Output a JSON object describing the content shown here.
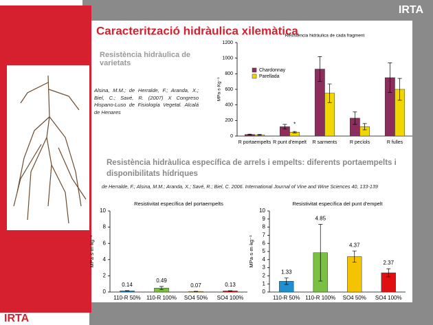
{
  "slide": {
    "title": "Caracterització hidràulica xilemàtica",
    "logos": [
      "IRTA",
      "IRTA"
    ],
    "section1": {
      "heading": "Resistència hidràulica de varietats",
      "citation": "Alsina, M.M.; de Herralde, F.; Aranda, X.; Biel, C.; Savé, R. (2007) X Congreso Hispano-Luso de Fisiología Vegetal. Alcalá de Henares"
    },
    "section2": {
      "heading": "Resistència hidràulica específica de arrels i empelts: diferents portaempelts i disponibilitats hídriques",
      "citation": "de Herralde, F.; Alsina, M.M.; Aranda, X.; Savé, R.; Biel, C. 2006. International Journal of Vine and Wine Sciences 40, 133-139"
    }
  },
  "chart_data": [
    {
      "type": "bar",
      "title": "Resistència hidràulica de cada fragment",
      "y_label": "MPa·s·Kg⁻¹",
      "categories": [
        "R portaempelts",
        "R punt d'empelt",
        "R sarments",
        "R pecíols",
        "R fulles"
      ],
      "series": [
        {
          "name": "Chardonnay",
          "color": "#8c2d5e",
          "values": [
            20,
            120,
            860,
            230,
            750
          ],
          "errors": [
            5,
            30,
            160,
            80,
            190
          ]
        },
        {
          "name": "Parellada",
          "color": "#f2d600",
          "values": [
            15,
            50,
            550,
            120,
            600
          ],
          "errors": [
            5,
            10,
            120,
            40,
            140
          ]
        }
      ],
      "ylim": [
        0,
        1200
      ],
      "yticks": [
        0,
        200,
        400,
        600,
        800,
        1000,
        1200
      ],
      "legend": "upper-left",
      "annotations": [
        "*"
      ]
    },
    {
      "type": "bar",
      "title": "Resistivitat específica del portaempelts",
      "y_label": "MPa·s·m·kg⁻¹",
      "categories": [
        "110-R 50%",
        "110-R 100%",
        "SO4 50%",
        "SO4 100%"
      ],
      "values": [
        0.14,
        0.49,
        0.07,
        0.13
      ],
      "errors": [
        0.03,
        0.2,
        0.02,
        0.03
      ],
      "colors": [
        "#1e90d0",
        "#7ac143",
        "#f5c400",
        "#e01010"
      ],
      "ylim": [
        0,
        10
      ],
      "yticks": [
        0,
        2,
        4,
        6,
        8,
        10
      ]
    },
    {
      "type": "bar",
      "title": "Resistivitat específica del punt d'empelt",
      "y_label": "MPa·s·m·kg⁻¹",
      "categories": [
        "110-R 50%",
        "110-R 100%",
        "SO4 50%",
        "SO4 100%"
      ],
      "values": [
        1.33,
        4.85,
        4.37,
        2.37
      ],
      "errors": [
        0.4,
        3.5,
        0.7,
        0.5
      ],
      "colors": [
        "#1e90d0",
        "#7ac143",
        "#f5c400",
        "#e01010"
      ],
      "ylim": [
        0,
        10
      ],
      "yticks": [
        0,
        1,
        2,
        3,
        4,
        5,
        6,
        7,
        8,
        9,
        10
      ]
    }
  ]
}
